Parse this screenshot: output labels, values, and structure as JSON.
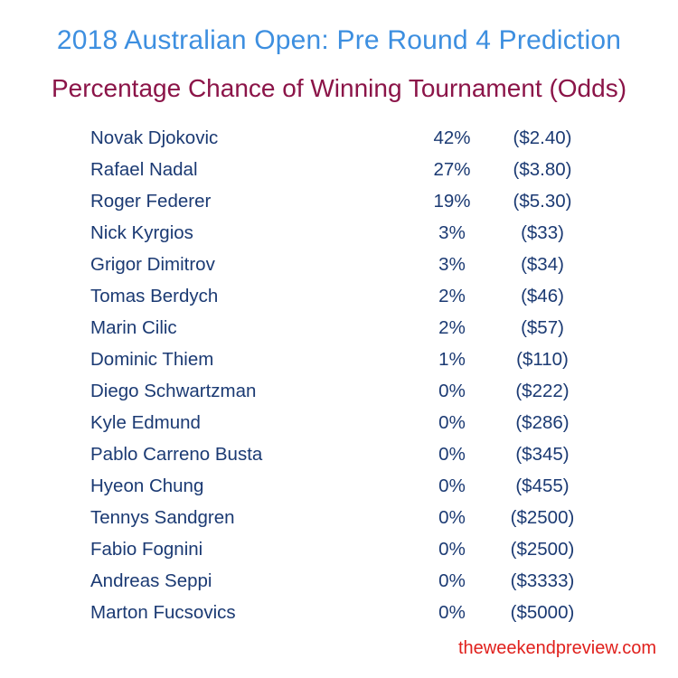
{
  "title": "2018 Australian Open: Pre Round 4 Prediction",
  "subtitle": "Percentage Chance of Winning Tournament (Odds)",
  "chart_data": {
    "type": "table",
    "title": "2018 Australian Open: Pre Round 4 Prediction",
    "subtitle": "Percentage Chance of Winning Tournament (Odds)",
    "rows": [
      {
        "player": "Novak Djokovic",
        "chance": "42%",
        "odds": "($2.40)"
      },
      {
        "player": "Rafael Nadal",
        "chance": "27%",
        "odds": "($3.80)"
      },
      {
        "player": "Roger Federer",
        "chance": "19%",
        "odds": "($5.30)"
      },
      {
        "player": "Nick Kyrgios",
        "chance": "3%",
        "odds": "($33)"
      },
      {
        "player": "Grigor Dimitrov",
        "chance": "3%",
        "odds": "($34)"
      },
      {
        "player": "Tomas Berdych",
        "chance": "2%",
        "odds": "($46)"
      },
      {
        "player": "Marin Cilic",
        "chance": "2%",
        "odds": "($57)"
      },
      {
        "player": "Dominic Thiem",
        "chance": "1%",
        "odds": "($110)"
      },
      {
        "player": "Diego Schwartzman",
        "chance": "0%",
        "odds": "($222)"
      },
      {
        "player": "Kyle Edmund",
        "chance": "0%",
        "odds": "($286)"
      },
      {
        "player": "Pablo Carreno Busta",
        "chance": "0%",
        "odds": "($345)"
      },
      {
        "player": "Hyeon Chung",
        "chance": "0%",
        "odds": "($455)"
      },
      {
        "player": "Tennys Sandgren",
        "chance": "0%",
        "odds": "($2500)"
      },
      {
        "player": "Fabio Fognini",
        "chance": "0%",
        "odds": "($2500)"
      },
      {
        "player": "Andreas Seppi",
        "chance": "0%",
        "odds": "($3333)"
      },
      {
        "player": "Marton Fucsovics",
        "chance": "0%",
        "odds": "($5000)"
      }
    ]
  },
  "footer": {
    "watermark": "theweekendpreview.com"
  },
  "colors": {
    "title": "#3d8fe0",
    "subtitle": "#8b1448",
    "body_text": "#1b3a73",
    "watermark": "#e0201c",
    "background": "#ffffff"
  }
}
